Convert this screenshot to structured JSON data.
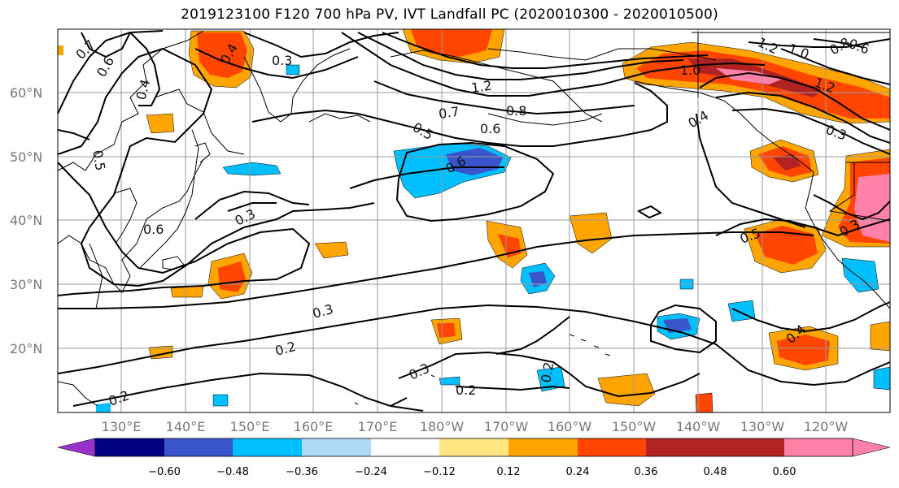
{
  "title": "2019123100 F120 700 hPa PV, IVT Landfall PC (2020010300 - 2020010500)",
  "lat_labels": [
    "60°N",
    "50°N",
    "40°N",
    "30°N",
    "20°N"
  ],
  "lon_labels": [
    "130°E",
    "140°E",
    "150°E",
    "160°E",
    "170°E",
    "180°W",
    "170°W",
    "160°W",
    "150°W",
    "140°W",
    "130°W",
    "120°W"
  ],
  "colorbar": {
    "ticks": [
      "−0.60",
      "−0.48",
      "−0.36",
      "−0.24",
      "−0.12",
      "0.12",
      "0.24",
      "0.36",
      "0.48",
      "0.60"
    ],
    "colors": [
      "#9932CC",
      "#000080",
      "#3A55CC",
      "#00BFFF",
      "#ADD8F6",
      "#FFFFFF",
      "#FFE680",
      "#FFA500",
      "#FF4500",
      "#B22222",
      "#FF80A8"
    ]
  },
  "contour_labels": [
    {
      "text": "0.7"
    },
    {
      "text": "0.6"
    },
    {
      "text": "0.4"
    },
    {
      "text": "0.4"
    },
    {
      "text": "0.3"
    },
    {
      "text": "0.5"
    },
    {
      "text": "0.6"
    },
    {
      "text": "0.3"
    },
    {
      "text": "0.3"
    },
    {
      "text": "0.2"
    },
    {
      "text": "0.2"
    },
    {
      "text": "0.3"
    },
    {
      "text": "0.2"
    },
    {
      "text": "0.2"
    },
    {
      "text": "1.2"
    },
    {
      "text": "0.7"
    },
    {
      "text": "0.8"
    },
    {
      "text": "0.6"
    },
    {
      "text": "0.5"
    },
    {
      "text": "0.6"
    },
    {
      "text": "1.0"
    },
    {
      "text": "1.2"
    },
    {
      "text": "1.0"
    },
    {
      "text": "0.8"
    },
    {
      "text": "0.6"
    },
    {
      "text": "0.4"
    },
    {
      "text": "1.2"
    },
    {
      "text": "0.3"
    },
    {
      "text": "0.5"
    },
    {
      "text": "0.3"
    },
    {
      "text": "0.4"
    }
  ]
}
